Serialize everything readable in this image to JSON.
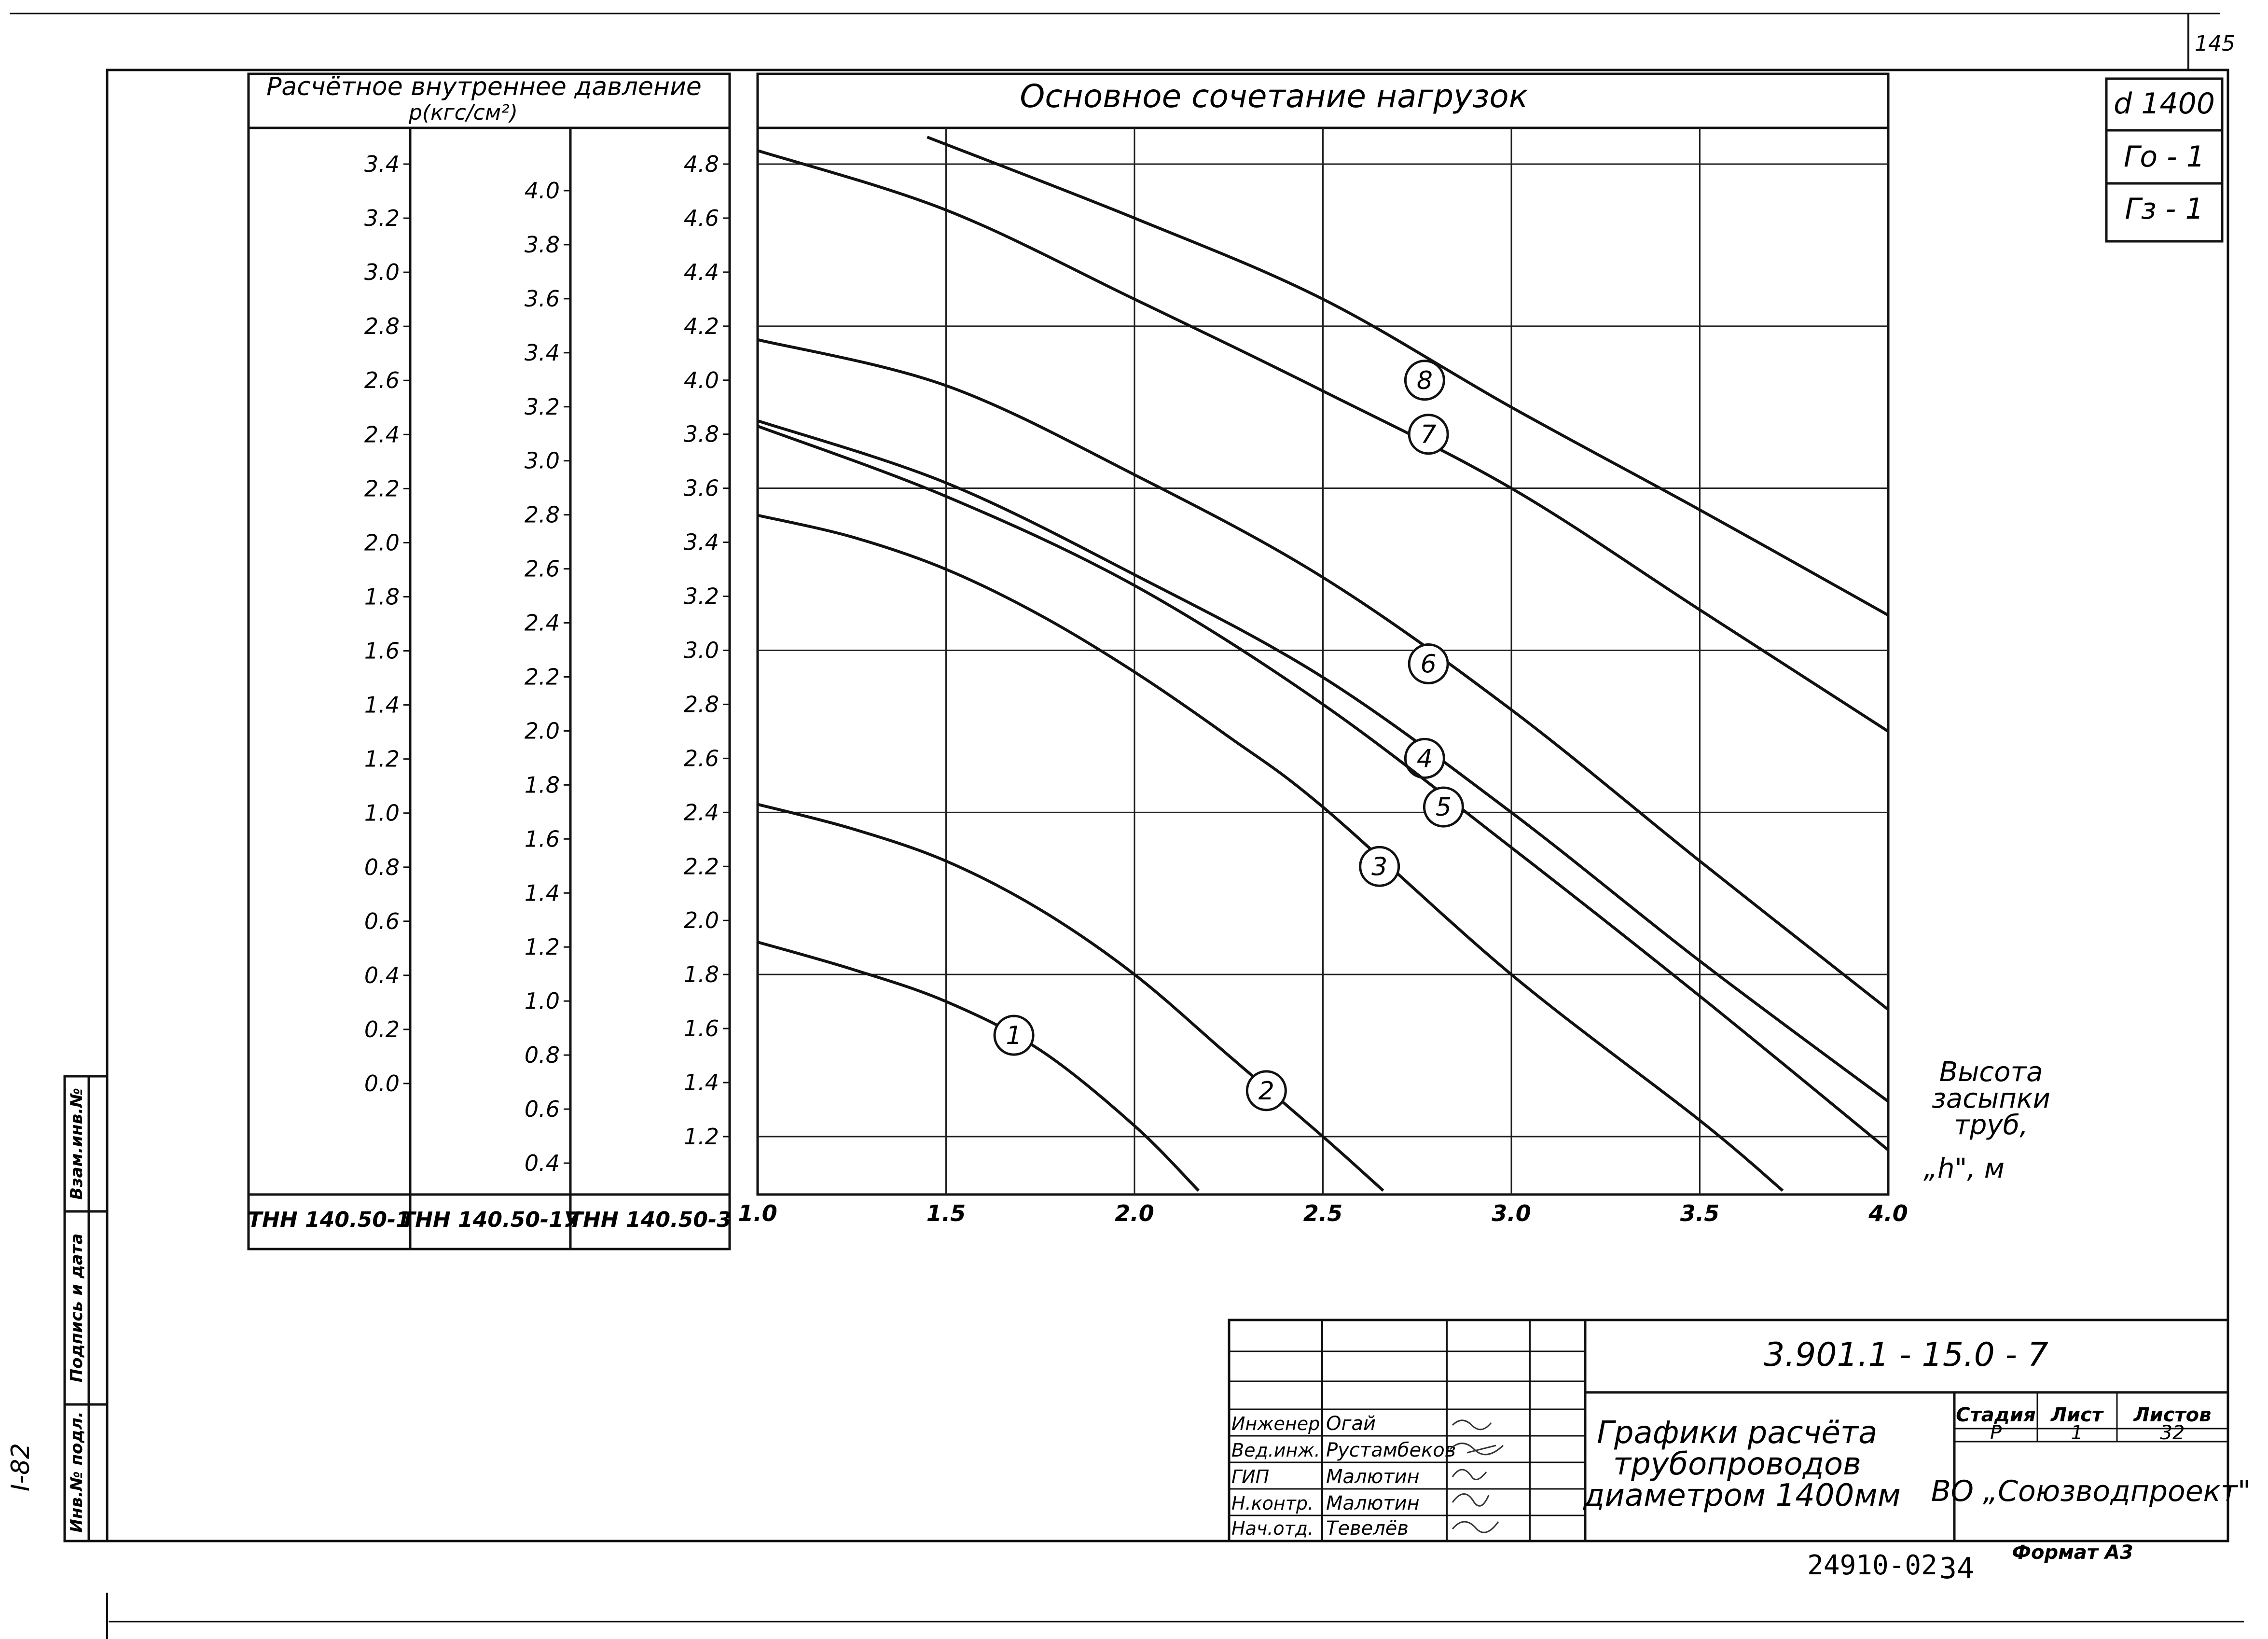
{
  "sheet_number": "145",
  "side_stamp": {
    "labels": [
      "Взам.инв.№",
      "Подпись и дата",
      "Инв.№ подл."
    ],
    "code": "I-82"
  },
  "corner_marks": [
    "d 1400",
    "Го - 1",
    "Гз - 1"
  ],
  "scale_panel": {
    "header": "Расчётное внутреннее давление",
    "unit": "p(кгс/см²)",
    "columns": [
      {
        "name": "ТНН 140.50-1",
        "ticks": [
          "3.4",
          "3.2",
          "3.0",
          "2.8",
          "2.6",
          "2.4",
          "2.2",
          "2.0",
          "1.8",
          "1.6",
          "1.4",
          "1.2",
          "1.0",
          "0.8",
          "0.6",
          "0.4",
          "0.2",
          "0.0"
        ],
        "top_value": 3.4,
        "bottom_value": 0.0
      },
      {
        "name": "ТНН 140.50-1У",
        "ticks": [
          "4.0",
          "3.8",
          "3.6",
          "3.4",
          "3.2",
          "3.0",
          "2.8",
          "2.6",
          "2.4",
          "2.2",
          "2.0",
          "1.8",
          "1.6",
          "1.4",
          "1.2",
          "1.0",
          "0.8",
          "0.6",
          "0.4"
        ],
        "top_value": 4.0,
        "bottom_value": 0.4
      },
      {
        "name": "ТНН 140.50-3",
        "ticks": [
          "4.8",
          "4.6",
          "4.4",
          "4.2",
          "4.0",
          "3.8",
          "3.6",
          "3.4",
          "3.2",
          "3.0",
          "2.8",
          "2.6",
          "2.4",
          "2.2",
          "2.0",
          "1.8",
          "1.6",
          "1.4",
          "1.2"
        ],
        "top_value": 4.8,
        "bottom_value": 1.2
      }
    ]
  },
  "chart_data": {
    "type": "line",
    "title": "Основное сочетание нагрузок",
    "xlabel": "Высота засыпки труб, „h\", м",
    "xlabel_lines": [
      "Высота",
      "засыпки",
      "труб,",
      "„h\", м"
    ],
    "x_ticks": [
      "1.0",
      "1.5",
      "2.0",
      "2.5",
      "3.0",
      "3.5",
      "4.0"
    ],
    "xlim": [
      1.0,
      4.0
    ],
    "ylim_reference": "ТНН 140.50-3",
    "ylim": [
      1.0,
      4.9
    ],
    "grid": true,
    "series": [
      {
        "name": "1",
        "label_at": [
          1.68,
          1.575
        ],
        "points": [
          [
            1.0,
            1.92
          ],
          [
            1.25,
            1.82
          ],
          [
            1.5,
            1.7
          ],
          [
            1.75,
            1.52
          ],
          [
            2.0,
            1.24
          ],
          [
            2.17,
            1.0
          ]
        ]
      },
      {
        "name": "2",
        "label_at": [
          2.35,
          1.37
        ],
        "points": [
          [
            1.0,
            2.43
          ],
          [
            1.25,
            2.34
          ],
          [
            1.5,
            2.22
          ],
          [
            1.75,
            2.04
          ],
          [
            2.0,
            1.8
          ],
          [
            2.25,
            1.5
          ],
          [
            2.5,
            1.2
          ],
          [
            2.66,
            1.0
          ]
        ]
      },
      {
        "name": "3",
        "label_at": [
          2.65,
          2.2
        ],
        "points": [
          [
            1.0,
            3.5
          ],
          [
            1.25,
            3.42
          ],
          [
            1.5,
            3.3
          ],
          [
            1.75,
            3.13
          ],
          [
            2.0,
            2.92
          ],
          [
            2.25,
            2.68
          ],
          [
            2.5,
            2.42
          ],
          [
            3.0,
            1.8
          ],
          [
            3.5,
            1.26
          ],
          [
            3.72,
            1.0
          ]
        ]
      },
      {
        "name": "4",
        "label_at": [
          2.77,
          2.6
        ],
        "points": [
          [
            1.0,
            3.85
          ],
          [
            1.5,
            3.62
          ],
          [
            2.0,
            3.28
          ],
          [
            2.5,
            2.9
          ],
          [
            3.0,
            2.4
          ],
          [
            3.5,
            1.85
          ],
          [
            4.0,
            1.33
          ]
        ]
      },
      {
        "name": "5",
        "label_at": [
          2.82,
          2.42
        ],
        "points": [
          [
            1.0,
            3.83
          ],
          [
            1.5,
            3.57
          ],
          [
            2.0,
            3.24
          ],
          [
            2.5,
            2.8
          ],
          [
            3.0,
            2.27
          ],
          [
            3.5,
            1.72
          ],
          [
            4.0,
            1.15
          ]
        ]
      },
      {
        "name": "6",
        "label_at": [
          2.78,
          2.95
        ],
        "points": [
          [
            1.0,
            4.15
          ],
          [
            1.5,
            3.98
          ],
          [
            2.0,
            3.65
          ],
          [
            2.5,
            3.27
          ],
          [
            3.0,
            2.78
          ],
          [
            3.5,
            2.22
          ],
          [
            4.0,
            1.67
          ]
        ]
      },
      {
        "name": "7",
        "label_at": [
          2.78,
          3.8
        ],
        "points": [
          [
            1.0,
            4.85
          ],
          [
            1.5,
            4.63
          ],
          [
            2.0,
            4.3
          ],
          [
            2.5,
            3.96
          ],
          [
            3.0,
            3.6
          ],
          [
            3.5,
            3.15
          ],
          [
            4.0,
            2.7
          ]
        ]
      },
      {
        "name": "8",
        "label_at": [
          2.77,
          4.0
        ],
        "points": [
          [
            1.45,
            4.9
          ],
          [
            2.0,
            4.6
          ],
          [
            2.5,
            4.3
          ],
          [
            3.0,
            3.9
          ],
          [
            3.5,
            3.52
          ],
          [
            4.0,
            3.13
          ]
        ]
      }
    ]
  },
  "title_block": {
    "doc_code": "3.901.1 - 15.0 - 7",
    "roles": [
      {
        "role": "Инженер",
        "name": "Огай"
      },
      {
        "role": "Вед.инж.",
        "name": "Рустамбеков"
      },
      {
        "role": "ГИП",
        "name": "Малютин"
      },
      {
        "role": "Н.контр.",
        "name": "Малютин"
      },
      {
        "role": "Нач.отд.",
        "name": "Тевелёв"
      }
    ],
    "title_lines": [
      "Графики расчёта",
      "трубопроводов",
      "диаметром 1400мм"
    ],
    "stage_headers": [
      "Стадия",
      "Лист",
      "Листов"
    ],
    "stage_values": [
      "Р",
      "1",
      "32"
    ],
    "organization": "ВО „Союзводпроект\"",
    "inventory": "24910-02",
    "inventory_sheet": "34",
    "format": "Формат А3"
  }
}
